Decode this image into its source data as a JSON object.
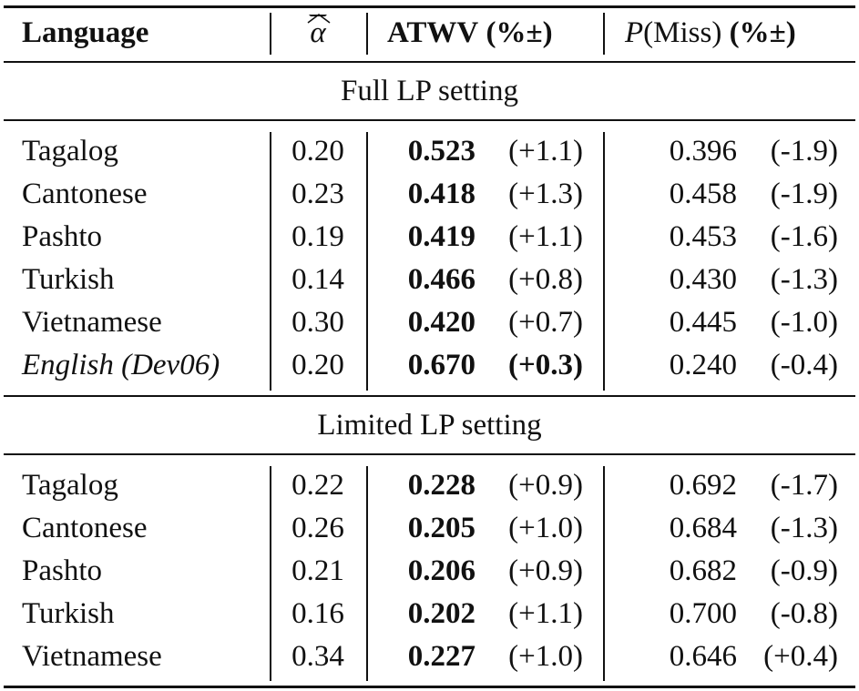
{
  "header": {
    "language": "Language",
    "alpha": "α",
    "atwv": "ATWV",
    "atwv_unit": "(%±)",
    "pmiss_p": "P",
    "pmiss_rest": "(Miss)",
    "pmiss_unit": "(%±)"
  },
  "sections": [
    {
      "title": "Full LP setting",
      "rows": [
        {
          "language": "Tagalog",
          "alpha": "0.20",
          "atwv": "0.523",
          "atwv_delta": "(+1.1)",
          "pmiss": "0.396",
          "pmiss_delta": "(-1.9)"
        },
        {
          "language": "Cantonese",
          "alpha": "0.23",
          "atwv": "0.418",
          "atwv_delta": "(+1.3)",
          "pmiss": "0.458",
          "pmiss_delta": "(-1.9)"
        },
        {
          "language": "Pashto",
          "alpha": "0.19",
          "atwv": "0.419",
          "atwv_delta": "(+1.1)",
          "pmiss": "0.453",
          "pmiss_delta": "(-1.6)"
        },
        {
          "language": "Turkish",
          "alpha": "0.14",
          "atwv": "0.466",
          "atwv_delta": "(+0.8)",
          "pmiss": "0.430",
          "pmiss_delta": "(-1.3)"
        },
        {
          "language": "Vietnamese",
          "alpha": "0.30",
          "atwv": "0.420",
          "atwv_delta": "(+0.7)",
          "pmiss": "0.445",
          "pmiss_delta": "(-1.0)"
        },
        {
          "language": "English (Dev06)",
          "alpha": "0.20",
          "atwv": "0.670",
          "atwv_delta": "(+0.3)",
          "pmiss": "0.240",
          "pmiss_delta": "(-0.4)"
        }
      ]
    },
    {
      "title": "Limited LP setting",
      "rows": [
        {
          "language": "Tagalog",
          "alpha": "0.22",
          "atwv": "0.228",
          "atwv_delta": "(+0.9)",
          "pmiss": "0.692",
          "pmiss_delta": "(-1.7)"
        },
        {
          "language": "Cantonese",
          "alpha": "0.26",
          "atwv": "0.205",
          "atwv_delta": "(+1.0)",
          "pmiss": "0.684",
          "pmiss_delta": "(-1.3)"
        },
        {
          "language": "Pashto",
          "alpha": "0.21",
          "atwv": "0.206",
          "atwv_delta": "(+0.9)",
          "pmiss": "0.682",
          "pmiss_delta": "(-0.9)"
        },
        {
          "language": "Turkish",
          "alpha": "0.16",
          "atwv": "0.202",
          "atwv_delta": "(+1.1)",
          "pmiss": "0.700",
          "pmiss_delta": "(-0.8)"
        },
        {
          "language": "Vietnamese",
          "alpha": "0.34",
          "atwv": "0.227",
          "atwv_delta": "(+1.0)",
          "pmiss": "0.646",
          "pmiss_delta": "(+0.4)"
        }
      ]
    }
  ]
}
